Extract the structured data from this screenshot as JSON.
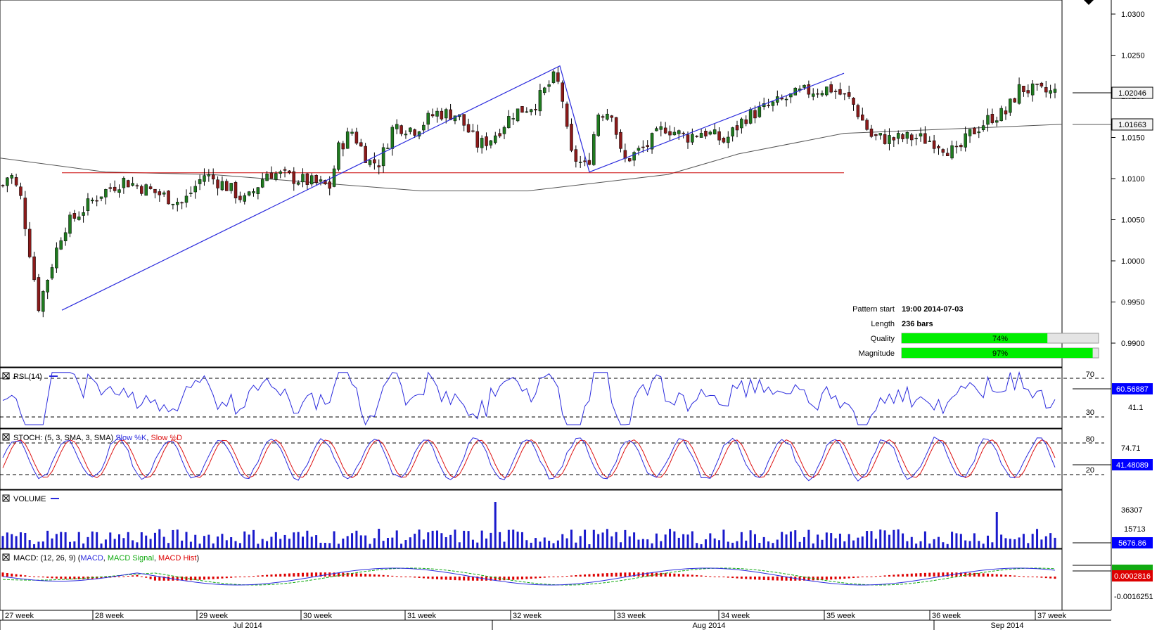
{
  "colors": {
    "up": "#1f7a1f",
    "down": "#8b1a1a",
    "support": "#cc0000",
    "trend": "#2b2bdd",
    "ma": "#555555",
    "rsi": "#2b2bdd",
    "stoch_k": "#2b2bdd",
    "stoch_d": "#dd1111",
    "volume": "#1a1acc",
    "macd": "#2b2bdd",
    "macd_signal": "#11aa11",
    "macd_hist": "#dd0000",
    "bar_fill": "#00ee00",
    "highlight": "#0000ff"
  },
  "price_axis": {
    "ticks": [
      "1.0300",
      "1.0250",
      "1.0200",
      "1.0150",
      "1.0100",
      "1.0050",
      "1.0000",
      "0.9950",
      "0.9900"
    ],
    "current_price": "1.02046",
    "ma_price": "1.01663"
  },
  "pattern_info": {
    "start_label": "Pattern start",
    "start_value": "19:00 2014-07-03",
    "length_label": "Length",
    "length_value": "236 bars",
    "quality_label": "Quality",
    "quality_value": "74%",
    "quality_pct": 74,
    "magnitude_label": "Magnitude",
    "magnitude_value": "97%",
    "magnitude_pct": 97
  },
  "rsi": {
    "title": "RSI (14)",
    "level_high": "70",
    "level_low": "30",
    "mid_value": "41.1",
    "current": "60.56887"
  },
  "stoch": {
    "title": "STOCH: (5, 3, SMA, 3, SMA)",
    "k_label": "Slow %K",
    "d_label": "Slow %D",
    "level_high": "80",
    "level_low": "20",
    "value_1": "74.71",
    "current": "41.48089"
  },
  "volume": {
    "title": "VOLUME",
    "tick_1": "36307",
    "tick_2": "15713",
    "current": "5676.86"
  },
  "macd": {
    "title": "MACD: (12, 26, 9)",
    "macd_label": "MACD",
    "signal_label": "MACD Signal",
    "hist_label": "MACD Hist",
    "current": "0.0002816",
    "low_tick": "-0.0016251"
  },
  "time_axis": {
    "weeks": [
      "27 week",
      "28 week",
      "29 week",
      "30 week",
      "31 week",
      "32 week",
      "33 week",
      "34 week",
      "35 week",
      "36 week",
      "37 week"
    ],
    "months": [
      "Jul 2014",
      "Aug 2014",
      "Sep 2014"
    ]
  },
  "chart_data": {
    "type": "candlestick",
    "y_axis_ticks": [
      1.03,
      1.025,
      1.02,
      1.015,
      1.01,
      1.005,
      1.0,
      0.995,
      0.99
    ],
    "ylim": [
      0.9875,
      1.0315
    ],
    "support_level": 1.0107,
    "trend_points": [
      {
        "date": "2014-07-03 19:00",
        "y": 0.994
      },
      {
        "date": "2014-08-01",
        "y": 1.0237
      },
      {
        "date": "2014-08-06",
        "y": 1.0108
      },
      {
        "date": "2014-08-22",
        "y": 1.0228
      }
    ],
    "moving_average_points": [
      1.0125,
      1.0108,
      1.0105,
      1.0095,
      1.0085,
      1.0085,
      1.0095,
      1.0105,
      1.013,
      1.0155,
      1.0162,
      1.0166
    ],
    "last_close": 1.02046,
    "pattern_quality": 74,
    "pattern_magnitude": 97
  }
}
